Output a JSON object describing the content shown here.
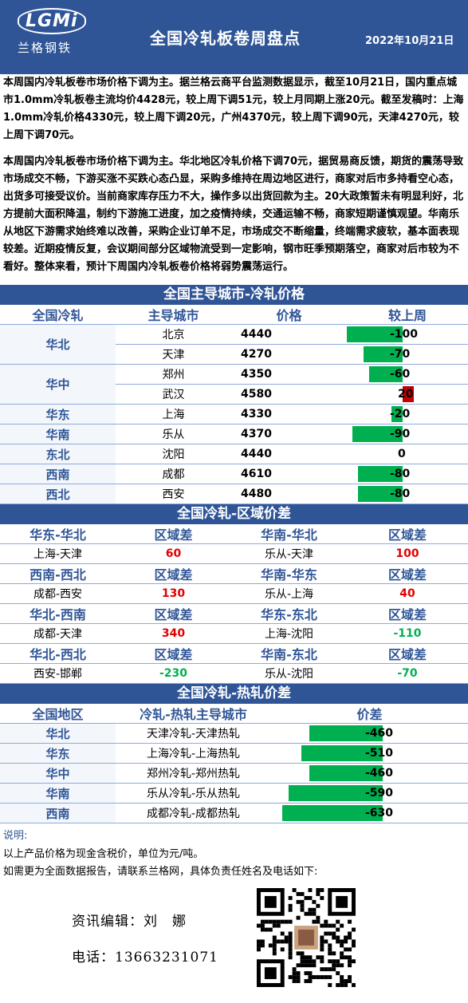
{
  "header": {
    "logo_text": "LGMi",
    "logo_cn": "兰格钢铁",
    "title": "全国冷轧板卷周盘点",
    "date": "2022年10月21日"
  },
  "paragraphs": {
    "p1": "本周国内冷轧板卷市场价格下调为主。据兰格云商平台监测数据显示，截至10月21日，国内重点城市1.0mm冷轧板卷主流均价4428元，较上周下调51元，较上月同期上涨20元。截至发稿时：上海1.0mm冷轧价格4330元，较上周下调20元，广州4370元，较上周下调90元，天津4270元，较上周下调70元。",
    "p2": "本周国内冷轧板卷市场价格下调为主。华北地区冷轧价格下调70元，据贸易商反馈，期货的震荡导致市场成交不畅，下游买涨不买跌心态凸显，采购多维持在周边地区进行，商家对后市多持看空心态，出货多可接受议价。当前商家库存压力不大，操作多以出货回款为主。20大政策暂未有明显利好，北方提前大面积降温，制约下游施工进度，加之疫情持续，交通运输不畅，商家短期谨慎观望。华南乐从地区下游需求始终难以改善，采购企业订单不足，市场成交不断缩量，终端需求疲软，基本面表现较差。近期疫情反复，会议期间部分区域物流受到一定影响，钢市旺季预期落空，商家对后市较为不看好。整体来看，预计下周国内冷轧板卷价格将弱势震荡运行。"
  },
  "city_section": {
    "title": "全国主导城市-冷轧价格",
    "headers": [
      "全国冷轧",
      "主导城市",
      "价格",
      "较上周"
    ],
    "rows": [
      {
        "region": "华北",
        "city": "北京",
        "price": "4440",
        "change": "-100",
        "change_value": -100
      },
      {
        "region": "",
        "city": "天津",
        "price": "4270",
        "change": "-70",
        "change_value": -70
      },
      {
        "region": "华中",
        "city": "郑州",
        "price": "4350",
        "change": "-60",
        "change_value": -60
      },
      {
        "region": "",
        "city": "武汉",
        "price": "4580",
        "change": "20",
        "change_value": 20
      },
      {
        "region": "华东",
        "city": "上海",
        "price": "4330",
        "change": "-20",
        "change_value": -20
      },
      {
        "region": "华南",
        "city": "乐从",
        "price": "4370",
        "change": "-90",
        "change_value": -90
      },
      {
        "region": "东北",
        "city": "沈阳",
        "price": "4440",
        "change": "0",
        "change_value": 0
      },
      {
        "region": "西南",
        "city": "成都",
        "price": "4610",
        "change": "-80",
        "change_value": -80
      },
      {
        "region": "西北",
        "city": "西安",
        "price": "4480",
        "change": "-80",
        "change_value": -80
      }
    ]
  },
  "spread_section": {
    "title": "全国冷轧-区域价差",
    "blocks": [
      {
        "left_region": "华东-华北",
        "left_hdr": "区域差",
        "left_pair": "上海-天津",
        "left_value": "60",
        "right_region": "华南-华北",
        "right_hdr": "区域差",
        "right_pair": "乐从-天津",
        "right_value": "100"
      },
      {
        "left_region": "西南-西北",
        "left_hdr": "区域差",
        "left_pair": "成都-西安",
        "left_value": "130",
        "right_region": "华南-华东",
        "right_hdr": "区域差",
        "right_pair": "乐从-上海",
        "right_value": "40"
      },
      {
        "left_region": "华北-西南",
        "left_hdr": "区域差",
        "left_pair": "成都-天津",
        "left_value": "340",
        "right_region": "华东-东北",
        "right_hdr": "区域差",
        "right_pair": "上海-沈阳",
        "right_value": "-110"
      },
      {
        "left_region": "华北-西北",
        "left_hdr": "区域差",
        "left_pair": "西安-邯郸",
        "left_value": "-230",
        "right_region": "华南-东北",
        "right_hdr": "区域差",
        "right_pair": "乐从-沈阳",
        "right_value": "-70"
      }
    ]
  },
  "hot_section": {
    "title": "全国冷轧-热轧价差",
    "headers": [
      "全国地区",
      "冷轧-热轧主导城市",
      "价差"
    ],
    "rows": [
      {
        "region": "华北",
        "pair": "天津冷轧-天津热轧",
        "spread": "-460",
        "spread_value": -460
      },
      {
        "region": "华东",
        "pair": "上海冷轧-上海热轧",
        "spread": "-510",
        "spread_value": -510
      },
      {
        "region": "华中",
        "pair": "郑州冷轧-郑州热轧",
        "spread": "-460",
        "spread_value": -460
      },
      {
        "region": "华南",
        "pair": "乐从冷轧-乐从热轧",
        "spread": "-590",
        "spread_value": -590
      },
      {
        "region": "西南",
        "pair": "成都冷轧-成都热轧",
        "spread": "-630",
        "spread_value": -630
      }
    ]
  },
  "notes": {
    "label": "说明:",
    "line1": "以上产品价格为现金含税价，单位为元/吨。",
    "line2": "如需更为全面数据报告，请联系兰格网，具体负责任姓名及电话如下:"
  },
  "contact": {
    "editor": "资讯编辑：刘　娜",
    "phone": "电话：13663231071"
  },
  "colors": {
    "header_bg": "#2f5597",
    "bar_negative": "#00b050",
    "bar_positive": "#c00000"
  }
}
